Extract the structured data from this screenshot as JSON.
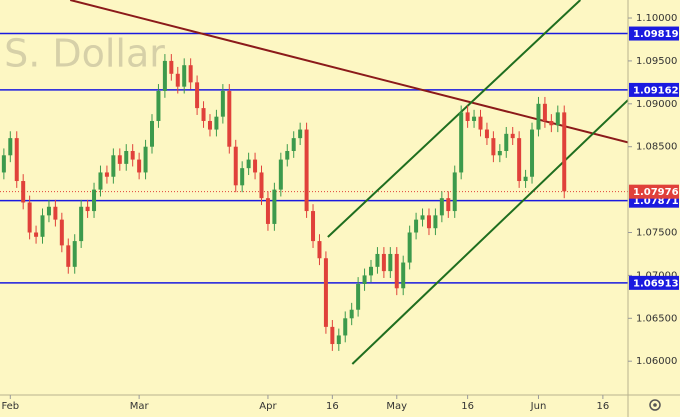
{
  "chart_data": {
    "type": "candlestick",
    "watermark": ".S. Dollar",
    "open": [
      1.082,
      1.084,
      1.086,
      1.081,
      1.0785,
      1.075,
      1.0745,
      1.077,
      1.078,
      1.0765,
      1.0735,
      1.071,
      1.074,
      1.078,
      1.0775,
      1.08,
      1.082,
      1.0815,
      1.084,
      1.083,
      1.0845,
      1.0835,
      1.082,
      1.085,
      1.088,
      1.0915,
      1.095,
      1.0935,
      1.092,
      1.0945,
      1.0925,
      1.0895,
      1.088,
      1.087,
      1.0885,
      1.0915,
      1.085,
      1.0805,
      1.0825,
      1.0835,
      1.082,
      1.079,
      1.076,
      1.08,
      1.0835,
      1.0845,
      1.086,
      1.087,
      1.0775,
      1.074,
      1.072,
      1.064,
      1.062,
      1.063,
      1.065,
      1.066,
      1.069,
      1.07,
      1.071,
      1.0725,
      1.0705,
      1.0725,
      1.0685,
      1.0715,
      1.075,
      1.0765,
      1.077,
      1.0755,
      1.077,
      1.079,
      1.0775,
      1.082,
      1.089,
      1.088,
      1.0885,
      1.087,
      1.086,
      1.084,
      1.0845,
      1.0865,
      1.086,
      1.081,
      1.0815,
      1.087,
      1.09,
      1.088,
      1.0875,
      1.089
    ],
    "high": [
      1.0848,
      1.0868,
      1.0868,
      1.0818,
      1.0793,
      1.0758,
      1.0778,
      1.0788,
      1.0788,
      1.0773,
      1.0743,
      1.0748,
      1.0788,
      1.0788,
      1.0808,
      1.0828,
      1.0828,
      1.0848,
      1.0848,
      1.0853,
      1.0853,
      1.0843,
      1.0858,
      1.0888,
      1.0923,
      1.0958,
      1.0958,
      1.0943,
      1.0953,
      1.0953,
      1.0933,
      1.0903,
      1.0888,
      1.0893,
      1.0923,
      1.0923,
      1.0858,
      1.0833,
      1.0843,
      1.0843,
      1.0828,
      1.0798,
      1.0808,
      1.0843,
      1.0853,
      1.0868,
      1.0878,
      1.0878,
      1.0783,
      1.0748,
      1.0728,
      1.0648,
      1.0638,
      1.0658,
      1.0668,
      1.0698,
      1.0708,
      1.0718,
      1.0733,
      1.0733,
      1.0733,
      1.0733,
      1.0723,
      1.0758,
      1.0773,
      1.0778,
      1.0778,
      1.0778,
      1.0798,
      1.0798,
      1.0828,
      1.0898,
      1.0898,
      1.0893,
      1.0893,
      1.0878,
      1.0868,
      1.0853,
      1.0873,
      1.0873,
      1.0868,
      1.0823,
      1.0878,
      1.0908,
      1.0908,
      1.0888,
      1.0898,
      1.0898
    ],
    "low": [
      1.0812,
      1.0832,
      1.0802,
      1.0777,
      1.0742,
      1.0737,
      1.0737,
      1.0762,
      1.0757,
      1.0727,
      1.0702,
      1.0702,
      1.0732,
      1.0767,
      1.0767,
      1.0792,
      1.0807,
      1.0807,
      1.0822,
      1.0822,
      1.0827,
      1.0812,
      1.0812,
      1.0842,
      1.0872,
      1.0907,
      1.0927,
      1.0912,
      1.0912,
      1.0917,
      1.0887,
      1.0872,
      1.0862,
      1.0862,
      1.0877,
      1.0842,
      1.0797,
      1.0797,
      1.0817,
      1.0812,
      1.0782,
      1.0752,
      1.0752,
      1.0792,
      1.0827,
      1.0837,
      1.0852,
      1.0767,
      1.0732,
      1.0712,
      1.0632,
      1.0612,
      1.0612,
      1.0622,
      1.0642,
      1.0652,
      1.0682,
      1.0692,
      1.0702,
      1.0697,
      1.0697,
      1.0677,
      1.0677,
      1.0707,
      1.0742,
      1.0757,
      1.0747,
      1.0747,
      1.0762,
      1.0767,
      1.0767,
      1.0812,
      1.0872,
      1.0872,
      1.0862,
      1.0852,
      1.0832,
      1.0832,
      1.0837,
      1.0852,
      1.0802,
      1.0802,
      1.0807,
      1.0862,
      1.0872,
      1.0867,
      1.0867,
      1.079
    ],
    "close": [
      1.084,
      1.086,
      1.081,
      1.0785,
      1.075,
      1.0745,
      1.077,
      1.078,
      1.0765,
      1.0735,
      1.071,
      1.074,
      1.078,
      1.0775,
      1.08,
      1.082,
      1.0815,
      1.084,
      1.083,
      1.0845,
      1.0835,
      1.082,
      1.085,
      1.088,
      1.0915,
      1.095,
      1.0935,
      1.092,
      1.0945,
      1.0925,
      1.0895,
      1.088,
      1.087,
      1.0885,
      1.0915,
      1.085,
      1.0805,
      1.0825,
      1.0835,
      1.082,
      1.079,
      1.076,
      1.08,
      1.0835,
      1.0845,
      1.086,
      1.087,
      1.0775,
      1.074,
      1.072,
      1.064,
      1.062,
      1.063,
      1.065,
      1.066,
      1.069,
      1.07,
      1.071,
      1.0725,
      1.0705,
      1.0725,
      1.0685,
      1.0715,
      1.075,
      1.0765,
      1.077,
      1.0755,
      1.077,
      1.079,
      1.0775,
      1.082,
      1.089,
      1.088,
      1.0885,
      1.087,
      1.086,
      1.084,
      1.0845,
      1.0865,
      1.086,
      1.081,
      1.0815,
      1.087,
      1.09,
      1.088,
      1.0875,
      1.089,
      1.0798
    ],
    "up_color": "#3c9a4c",
    "down_color": "#e0413a",
    "xlim": [
      -0.6,
      96.9
    ],
    "xticks": [
      {
        "value": 1,
        "label": "Feb"
      },
      {
        "value": 21,
        "label": "Mar"
      },
      {
        "value": 41,
        "label": "Apr"
      },
      {
        "value": 51,
        "label": "16"
      },
      {
        "value": 61,
        "label": "May"
      },
      {
        "value": 72,
        "label": "16"
      },
      {
        "value": 83,
        "label": "Jun"
      },
      {
        "value": 93,
        "label": "16"
      }
    ],
    "ylim": [
      1.05606,
      1.1021
    ],
    "yticks": [
      {
        "value": 1.1,
        "label": "1.10000"
      },
      {
        "value": 1.095,
        "label": "1.09500"
      },
      {
        "value": 1.09,
        "label": "1.09000"
      },
      {
        "value": 1.085,
        "label": "1.08500"
      },
      {
        "value": 1.075,
        "label": "1.07500"
      },
      {
        "value": 1.07,
        "label": "1.07000"
      },
      {
        "value": 1.065,
        "label": "1.06500"
      },
      {
        "value": 1.06,
        "label": "1.06000"
      }
    ],
    "levels": [
      1.09819,
      1.09162,
      1.07871,
      1.06913
    ],
    "level_color": "#1a1ae0",
    "last_price": 1.07976,
    "trendlines": [
      {
        "color": "#8b1a1a",
        "points": [
          [
            10.3,
            1.1021
          ],
          [
            96.9,
            1.0855
          ]
        ]
      },
      {
        "color": "#1f6e1f",
        "points": [
          [
            50.3,
            1.07448
          ],
          [
            89.5,
            1.1021
          ]
        ]
      },
      {
        "color": "#1f6e1f",
        "points": [
          [
            54.1,
            1.05967
          ],
          [
            96.9,
            1.09044
          ]
        ]
      }
    ]
  }
}
